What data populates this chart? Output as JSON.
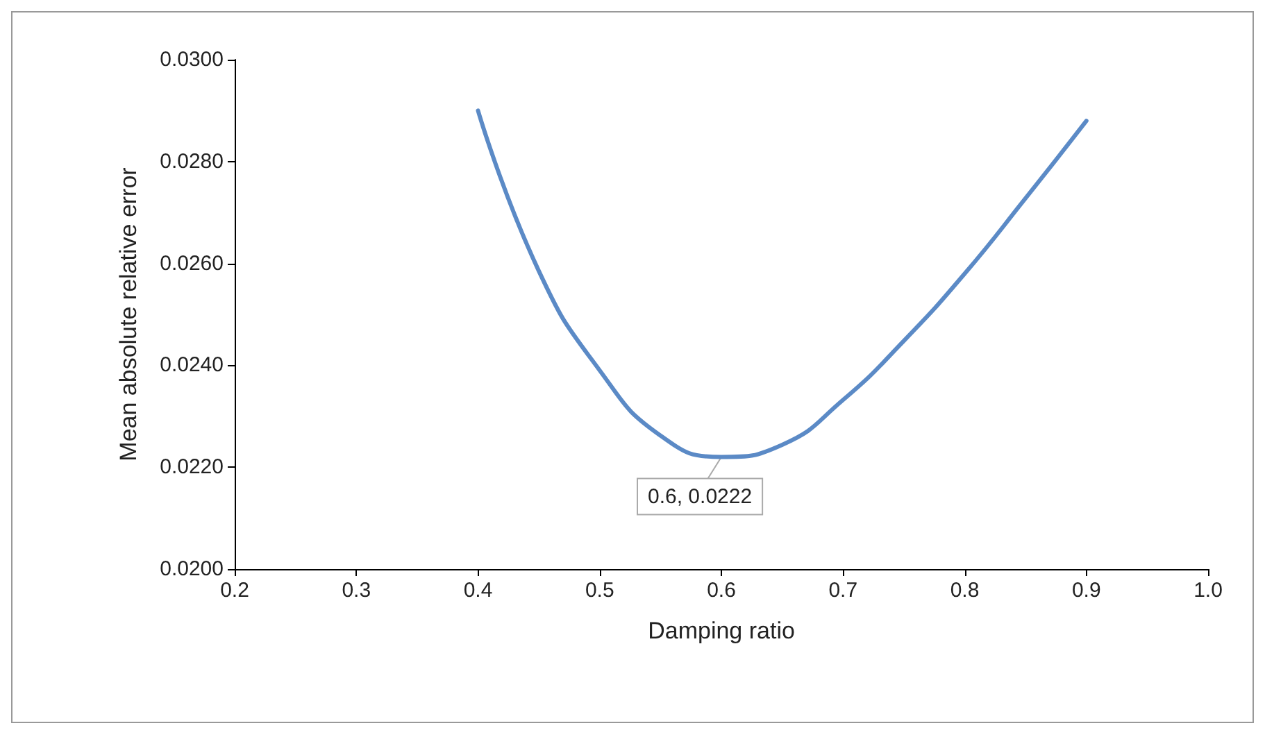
{
  "chart_data": {
    "type": "line",
    "xlabel": "Damping ratio",
    "ylabel": "Mean absolute relative error",
    "x": [
      0.4,
      0.45,
      0.5,
      0.55,
      0.6,
      0.65,
      0.7,
      0.75,
      0.8,
      0.85,
      0.9
    ],
    "series": [
      {
        "color": "#5b8ac6",
        "values": [
          0.029,
          0.02585,
          0.0239,
          0.02262,
          0.0222,
          0.02244,
          0.02332,
          0.02448,
          0.0258,
          0.02728,
          0.0288
        ]
      }
    ],
    "xlim": [
      0.2,
      1.0
    ],
    "xticks": [
      0.2,
      0.3,
      0.4,
      0.5,
      0.6,
      0.7,
      0.8,
      0.9,
      {
        "value": 1.0,
        "label": "1.0"
      }
    ],
    "ylim": [
      0.02,
      0.03
    ],
    "yticks": [
      {
        "value": 0.02,
        "label": "0.0200"
      },
      {
        "value": 0.022,
        "label": "0.0220"
      },
      {
        "value": 0.024,
        "label": "0.0240"
      },
      {
        "value": 0.026,
        "label": "0.0260"
      },
      {
        "value": 0.028,
        "label": "0.0280"
      },
      {
        "value": 0.03,
        "label": "0.0300"
      }
    ],
    "annotations": [
      {
        "text": "0.6, 0.0222",
        "x": 0.6,
        "y": 0.0222
      }
    ],
    "grid": false,
    "marker": "none",
    "line_style": "solid"
  }
}
